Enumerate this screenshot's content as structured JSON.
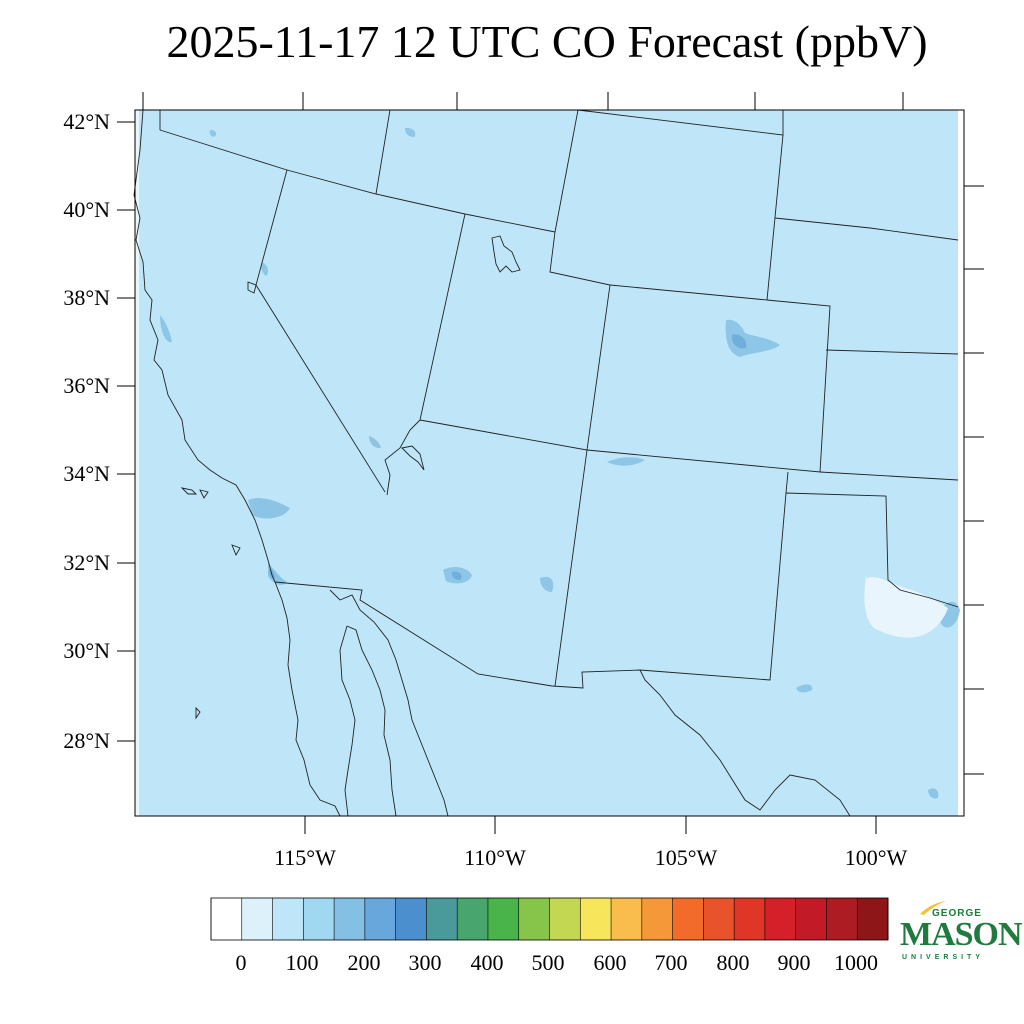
{
  "title": "2025-11-17 12 UTC CO Forecast (ppbV)",
  "lat_labels": [
    "42°N",
    "40°N",
    "38°N",
    "36°N",
    "34°N",
    "32°N",
    "30°N",
    "28°N"
  ],
  "lon_labels": [
    "115°W",
    "110°W",
    "105°W",
    "100°W"
  ],
  "colorbar": {
    "labels": [
      "0",
      "100",
      "200",
      "300",
      "400",
      "500",
      "600",
      "700",
      "800",
      "900",
      "1000"
    ],
    "colors": [
      "#ffffff",
      "#ddf1fb",
      "#bfe6f8",
      "#a0d8f1",
      "#84bfe4",
      "#68a7db",
      "#4b8fcf",
      "#4a9a9b",
      "#47a56d",
      "#48b449",
      "#87c54a",
      "#c3d753",
      "#f7e55b",
      "#f8bd4c",
      "#f59839",
      "#f26b2b",
      "#e9532b",
      "#e03628",
      "#d51f29",
      "#c21b27",
      "#ad1c22",
      "#8e1619"
    ]
  },
  "map": {
    "background_color": "#bfe6f8",
    "enhanced_color": "#84bfe4",
    "low_color": "#e8f5fc"
  },
  "logo": {
    "top": "GEORGE",
    "main": "MASON",
    "bottom": "UNIVERSITY"
  }
}
